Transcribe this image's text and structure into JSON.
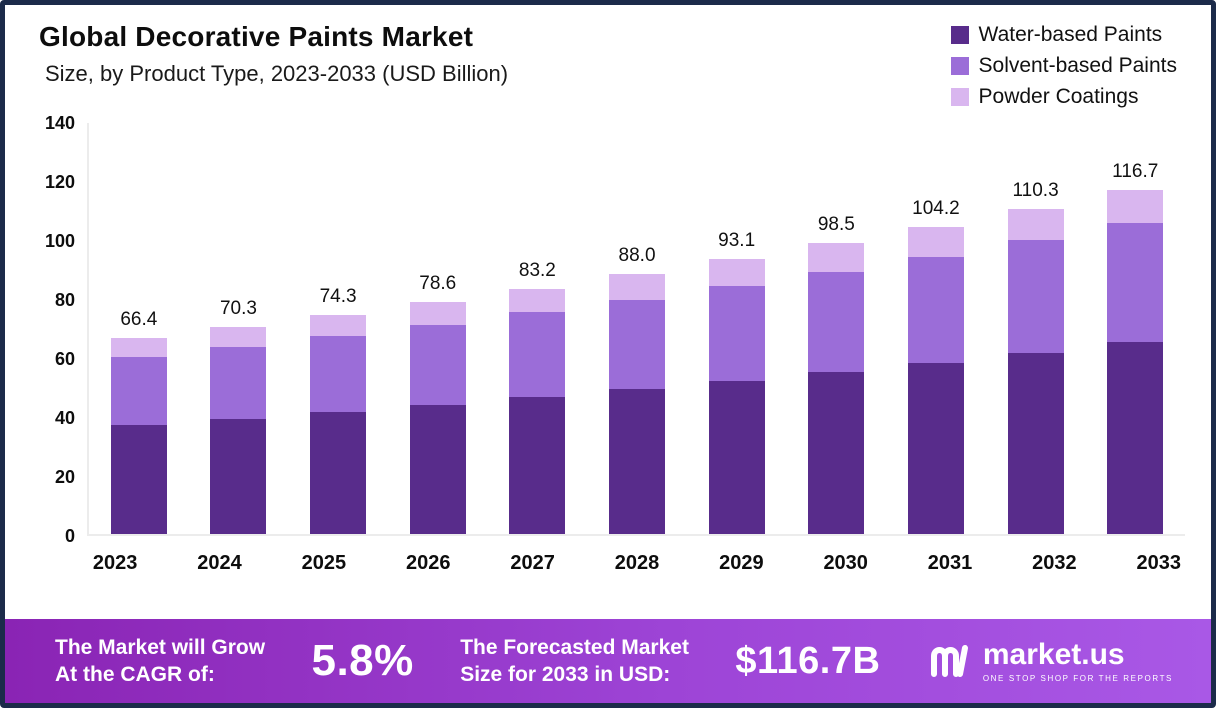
{
  "header": {
    "title": "Global Decorative Paints Market",
    "subtitle": "Size, by Product Type, 2023-2033 (USD Billion)"
  },
  "legend": {
    "items": [
      {
        "label": "Water-based Paints",
        "color": "#582c8b"
      },
      {
        "label": "Solvent-based Paints",
        "color": "#9b6dd8"
      },
      {
        "label": "Powder Coatings",
        "color": "#d9b6ef"
      }
    ]
  },
  "chart_data": {
    "type": "bar",
    "stacked": true,
    "title": "Global Decorative Paints Market Size, by Product Type, 2023-2033 (USD Billion)",
    "categories": [
      "2023",
      "2024",
      "2025",
      "2026",
      "2027",
      "2028",
      "2029",
      "2030",
      "2031",
      "2032",
      "2033"
    ],
    "series": [
      {
        "name": "Water-based Paints",
        "key": "water-based-paints",
        "color": "#582c8b",
        "values": [
          37.0,
          39.1,
          41.4,
          43.8,
          46.3,
          49.0,
          51.9,
          54.9,
          58.1,
          61.4,
          65.0
        ]
      },
      {
        "name": "Solvent-based Paints",
        "key": "solvent-based-paints",
        "color": "#9b6dd8",
        "values": [
          23.0,
          24.3,
          25.7,
          27.1,
          28.8,
          30.4,
          32.1,
          34.0,
          35.9,
          38.1,
          40.3
        ]
      },
      {
        "name": "Powder Coatings",
        "key": "powder-coatings",
        "color": "#d9b6ef",
        "values": [
          6.4,
          6.9,
          7.2,
          7.7,
          8.1,
          8.6,
          9.1,
          9.6,
          10.2,
          10.8,
          11.4
        ]
      }
    ],
    "totals": [
      66.4,
      70.3,
      74.3,
      78.6,
      83.2,
      88.0,
      93.1,
      98.5,
      104.2,
      110.3,
      116.7
    ],
    "xlabel": "",
    "ylabel": "",
    "ylim": [
      0,
      140
    ],
    "yticks": [
      0,
      20,
      40,
      60,
      80,
      100,
      120,
      140
    ],
    "grid": false,
    "legend_position": "top-right"
  },
  "footer": {
    "cagr_label_line1": "The Market will Grow",
    "cagr_label_line2": "At the CAGR of:",
    "cagr_value": "5.8%",
    "forecast_label_line1": "The Forecasted Market",
    "forecast_label_line2": "Size for 2033 in USD:",
    "forecast_value": "$116.7B",
    "brand": "market.us",
    "brand_tagline": "ONE STOP SHOP FOR THE REPORTS"
  },
  "colors": {
    "frame_border": "#1c2b4a",
    "banner_gradient_start": "#8a24b4",
    "banner_gradient_end": "#a958e6"
  }
}
